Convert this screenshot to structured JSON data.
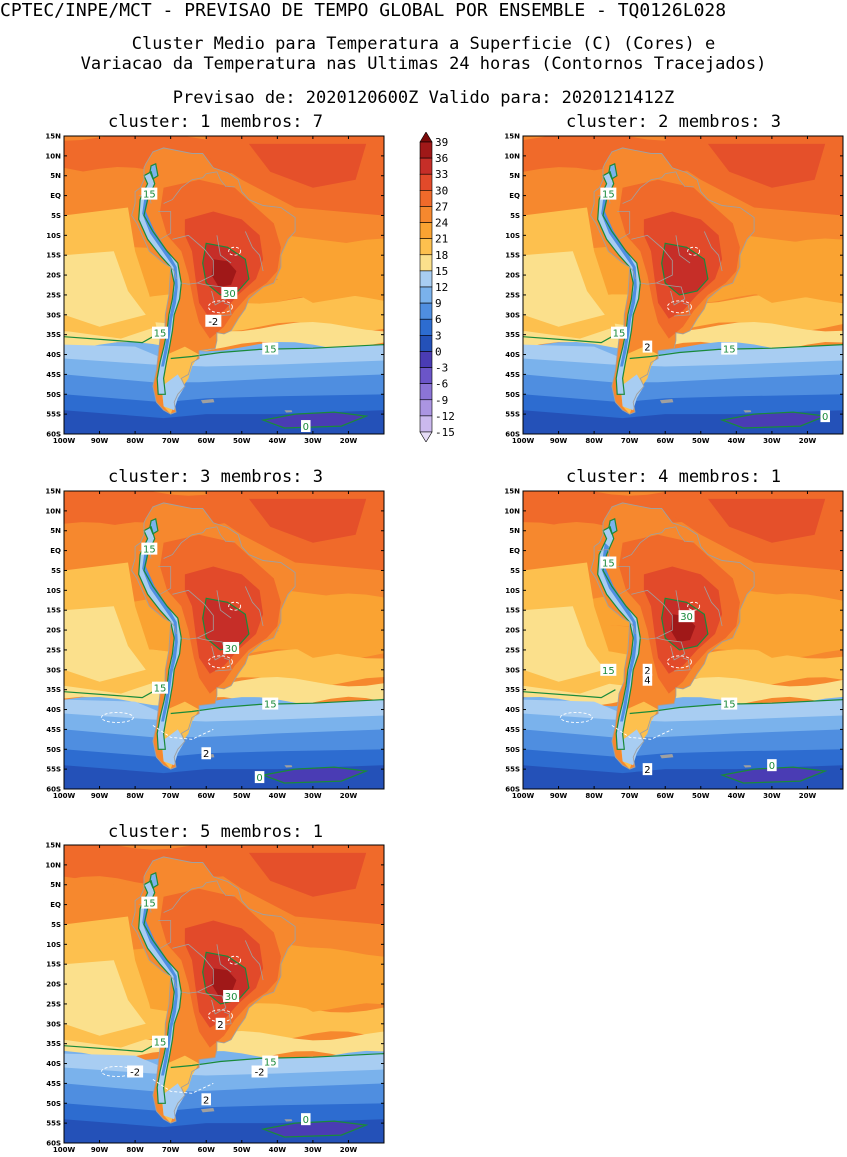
{
  "header": {
    "line1": "CPTEC/INPE/MCT - PREVISAO DE TEMPO GLOBAL POR ENSEMBLE - TQ0126L028",
    "line2": "Cluster Medio para Temperatura a Superficie (C) (Cores) e",
    "line3": "Variacao da Temperatura nas Ultimas 24 horas (Contornos Tracejados)",
    "line4": "Previsao de: 2020120600Z    Valido para: 2020121412Z"
  },
  "axes": {
    "lat_labels": [
      "15N",
      "10N",
      "5N",
      "EQ",
      "5S",
      "10S",
      "15S",
      "20S",
      "25S",
      "30S",
      "35S",
      "40S",
      "45S",
      "50S",
      "55S",
      "60S"
    ],
    "lon_labels": [
      "100W",
      "90W",
      "80W",
      "70W",
      "60W",
      "50W",
      "40W",
      "30W",
      "20W"
    ],
    "lon_range": [
      -100,
      -10
    ],
    "lat_range": [
      -60,
      15
    ]
  },
  "colorbar": {
    "levels": [
      "39",
      "36",
      "33",
      "30",
      "27",
      "24",
      "21",
      "18",
      "15",
      "12",
      "9",
      "6",
      "3",
      "0",
      "-3",
      "-6",
      "-9",
      "-12",
      "-15"
    ],
    "colors": [
      "#7a0a0a",
      "#a01818",
      "#c62e28",
      "#e24a2a",
      "#f06a2a",
      "#f6882e",
      "#faa332",
      "#fdc04e",
      "#fbe08c",
      "#a8cdf2",
      "#7ab2ec",
      "#4f8ee0",
      "#2d6cd0",
      "#2451b8",
      "#4a3cb4",
      "#6b55c8",
      "#8b74d6",
      "#ab95e2",
      "#cbb9ee",
      "#e6dcf7"
    ]
  },
  "clusters": [
    {
      "title": "cluster: 1   membros: 7",
      "labels": [
        "15",
        "30",
        "-2",
        "15",
        "15",
        "0"
      ]
    },
    {
      "title": "cluster: 2   membros: 3",
      "labels": [
        "15",
        "15",
        "2",
        "15",
        "0"
      ]
    },
    {
      "title": "cluster: 3   membros: 3",
      "labels": [
        "15",
        "30",
        "15",
        "15",
        "2",
        "0"
      ]
    },
    {
      "title": "cluster: 4   membros: 1",
      "labels": [
        "15",
        "30",
        "15",
        "2",
        "4",
        "15",
        "2",
        "0"
      ]
    },
    {
      "title": "cluster: 5   membros: 1",
      "labels": [
        "15",
        "30",
        "2",
        "15",
        "-2",
        "-2",
        "15",
        "2",
        "0"
      ]
    }
  ]
}
